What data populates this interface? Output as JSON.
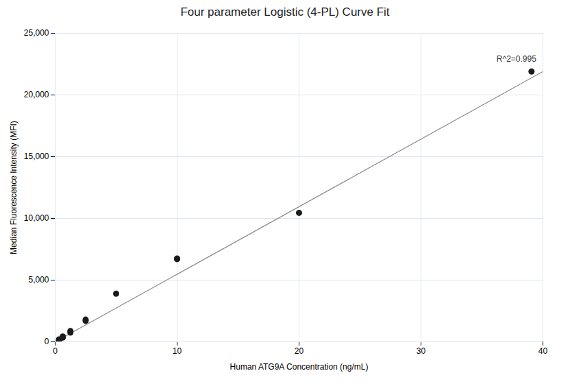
{
  "chart_data": {
    "type": "scatter",
    "title": "Four parameter Logistic (4-PL) Curve Fit",
    "x_label": "Human ATG9A Concentration (ng/mL)",
    "y_label": "Median Fluorescence Intensity (MFI)",
    "series": [
      {
        "type": "line",
        "color": "#888888",
        "x": [
          0.0,
          40.0
        ],
        "values": [
          0.0,
          21900.0
        ]
      },
      {
        "type": "scatter",
        "color": "#1a1a1a",
        "x": [
          0.313,
          0.313,
          0.625,
          0.625,
          1.25,
          1.25,
          2.5,
          2.5,
          5.0,
          10.0,
          10.0,
          20.0,
          39.063
        ],
        "values": [
          120,
          200,
          350,
          430,
          750,
          880,
          1700,
          1800,
          3900,
          6700,
          6750,
          10450,
          21900
        ]
      }
    ],
    "annotations": [
      {
        "text": "R^2=0.995",
        "x": 36.2,
        "y": 22700
      }
    ],
    "xlim": [
      0,
      40
    ],
    "ylim": [
      0,
      25000
    ],
    "xticks": [
      0,
      10,
      20,
      30,
      40
    ],
    "yticks": [
      0,
      {
        "value": 5000,
        "label": "5,000"
      },
      {
        "value": 10000,
        "label": "10,000"
      },
      {
        "value": 15000,
        "label": "15,000"
      },
      {
        "value": 20000,
        "label": "20,000"
      },
      {
        "value": 25000,
        "label": "25,000"
      }
    ],
    "grid": true
  }
}
